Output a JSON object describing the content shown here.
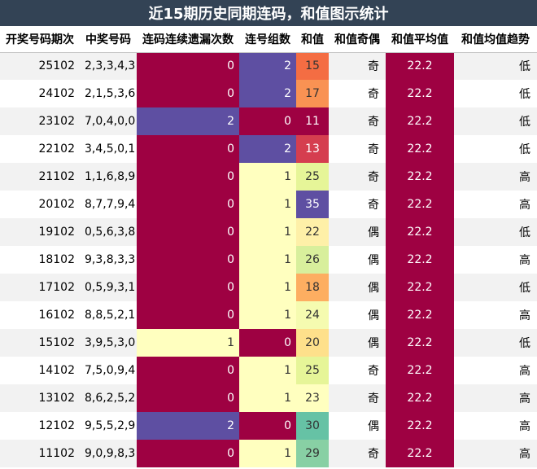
{
  "title": "近15期历史同期连码，和值图示统计",
  "headers": [
    "开奖号码期次",
    "中奖号码",
    "连码连续遗漏次数",
    "连号组数",
    "和值",
    "和值奇偶",
    "和值平均值",
    "和值均值趋势"
  ],
  "rows": [
    {
      "issue": "25102",
      "numbers": "2,3,3,4,3",
      "miss": 0,
      "groups": 2,
      "sum": 15,
      "parity": "奇",
      "avg": "22.2",
      "trend": "低"
    },
    {
      "issue": "24102",
      "numbers": "2,1,5,3,6",
      "miss": 0,
      "groups": 2,
      "sum": 17,
      "parity": "奇",
      "avg": "22.2",
      "trend": "低"
    },
    {
      "issue": "23102",
      "numbers": "7,0,4,0,0",
      "miss": 2,
      "groups": 0,
      "sum": 11,
      "parity": "奇",
      "avg": "22.2",
      "trend": "低"
    },
    {
      "issue": "22102",
      "numbers": "3,4,5,0,1",
      "miss": 0,
      "groups": 2,
      "sum": 13,
      "parity": "奇",
      "avg": "22.2",
      "trend": "低"
    },
    {
      "issue": "21102",
      "numbers": "1,1,6,8,9",
      "miss": 0,
      "groups": 1,
      "sum": 25,
      "parity": "奇",
      "avg": "22.2",
      "trend": "高"
    },
    {
      "issue": "20102",
      "numbers": "8,7,7,9,4",
      "miss": 0,
      "groups": 1,
      "sum": 35,
      "parity": "奇",
      "avg": "22.2",
      "trend": "高"
    },
    {
      "issue": "19102",
      "numbers": "0,5,6,3,8",
      "miss": 0,
      "groups": 1,
      "sum": 22,
      "parity": "偶",
      "avg": "22.2",
      "trend": "低"
    },
    {
      "issue": "18102",
      "numbers": "9,3,8,3,3",
      "miss": 0,
      "groups": 1,
      "sum": 26,
      "parity": "偶",
      "avg": "22.2",
      "trend": "高"
    },
    {
      "issue": "17102",
      "numbers": "0,5,9,3,1",
      "miss": 0,
      "groups": 1,
      "sum": 18,
      "parity": "偶",
      "avg": "22.2",
      "trend": "低"
    },
    {
      "issue": "16102",
      "numbers": "8,8,5,2,1",
      "miss": 0,
      "groups": 1,
      "sum": 24,
      "parity": "偶",
      "avg": "22.2",
      "trend": "高"
    },
    {
      "issue": "15102",
      "numbers": "3,9,5,3,0",
      "miss": 1,
      "groups": 0,
      "sum": 20,
      "parity": "偶",
      "avg": "22.2",
      "trend": "低"
    },
    {
      "issue": "14102",
      "numbers": "7,5,0,9,4",
      "miss": 0,
      "groups": 1,
      "sum": 25,
      "parity": "奇",
      "avg": "22.2",
      "trend": "高"
    },
    {
      "issue": "13102",
      "numbers": "8,6,2,5,2",
      "miss": 0,
      "groups": 1,
      "sum": 23,
      "parity": "奇",
      "avg": "22.2",
      "trend": "高"
    },
    {
      "issue": "12102",
      "numbers": "9,5,5,2,9",
      "miss": 2,
      "groups": 0,
      "sum": 30,
      "parity": "偶",
      "avg": "22.2",
      "trend": "高"
    },
    {
      "issue": "11102",
      "numbers": "9,0,9,8,3",
      "miss": 0,
      "groups": 1,
      "sum": 29,
      "parity": "奇",
      "avg": "22.2",
      "trend": "高"
    }
  ],
  "colors": {
    "title_bg": "#334355",
    "row_stripe": "#f2f2f2",
    "miss_0": "#9e0142",
    "miss_1": "#ffffbf",
    "miss_2": "#5e4fa2",
    "groups_0": "#9e0142",
    "groups_1": "#ffffbf",
    "groups_2": "#5e4fa2",
    "avg_bg": "#9e0142",
    "sum_colors": {
      "11": "#9e0142",
      "13": "#d53e4f",
      "15": "#f46d43",
      "17": "#f99253",
      "18": "#fdae61",
      "20": "#fee08b",
      "22": "#fef0a8",
      "23": "#ffffbf",
      "24": "#f5fbb0",
      "25": "#e6f598",
      "26": "#d8ef9c",
      "29": "#88d0a4",
      "30": "#66c2a5",
      "35": "#5e4fa2"
    }
  }
}
